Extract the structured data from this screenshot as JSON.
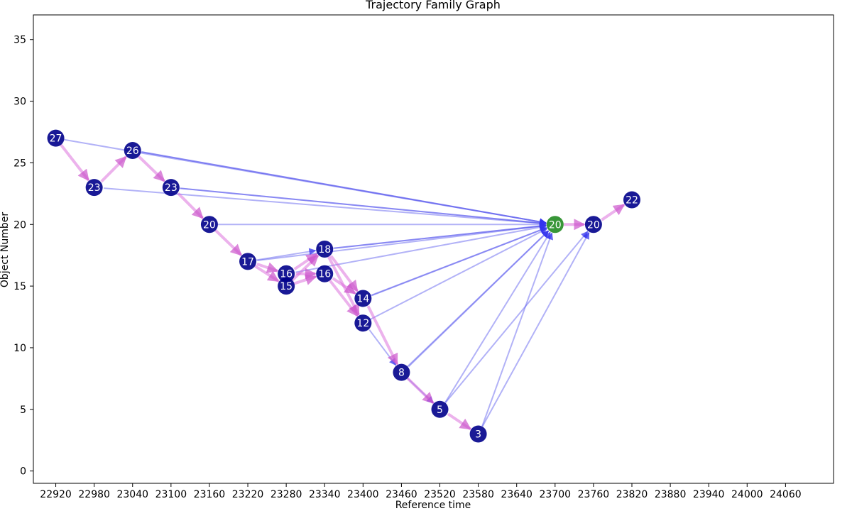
{
  "chart_data": {
    "type": "scatter",
    "title": "Trajectory Family Graph",
    "xlabel": "Reference time",
    "ylabel": "Object Number",
    "xlim": [
      22885,
      24135
    ],
    "ylim": [
      -1,
      37
    ],
    "x_ticks": [
      22920,
      22980,
      23040,
      23100,
      23160,
      23220,
      23280,
      23340,
      23400,
      23460,
      23520,
      23580,
      23640,
      23700,
      23760,
      23820,
      23880,
      23940,
      24000,
      24060
    ],
    "y_ticks": [
      0,
      5,
      10,
      15,
      20,
      25,
      30,
      35
    ],
    "grid": false,
    "colors": {
      "node": "#00008b",
      "highlight_node": "#228b22",
      "sequence_edge": "#d966d9",
      "merge_edge": "#5555ee"
    },
    "nodes": [
      {
        "id": "n1",
        "x": 22920,
        "y": 27,
        "label": "27"
      },
      {
        "id": "n2",
        "x": 22980,
        "y": 23,
        "label": "23"
      },
      {
        "id": "n3",
        "x": 23040,
        "y": 26,
        "label": "26"
      },
      {
        "id": "n4",
        "x": 23100,
        "y": 23,
        "label": "23"
      },
      {
        "id": "n5",
        "x": 23160,
        "y": 20,
        "label": "20"
      },
      {
        "id": "n6",
        "x": 23220,
        "y": 17,
        "label": "17"
      },
      {
        "id": "n7",
        "x": 23280,
        "y": 16,
        "label": "16"
      },
      {
        "id": "n8",
        "x": 23280,
        "y": 15,
        "label": "15"
      },
      {
        "id": "n9",
        "x": 23340,
        "y": 18,
        "label": "18"
      },
      {
        "id": "n10",
        "x": 23340,
        "y": 16,
        "label": "16"
      },
      {
        "id": "n11",
        "x": 23400,
        "y": 14,
        "label": "14"
      },
      {
        "id": "n12",
        "x": 23400,
        "y": 12,
        "label": "12"
      },
      {
        "id": "n13",
        "x": 23460,
        "y": 8,
        "label": "8"
      },
      {
        "id": "n14",
        "x": 23520,
        "y": 5,
        "label": "5"
      },
      {
        "id": "n15",
        "x": 23580,
        "y": 3,
        "label": "3"
      },
      {
        "id": "n16",
        "x": 23700,
        "y": 20,
        "label": "20",
        "highlight": true
      },
      {
        "id": "n17",
        "x": 23760,
        "y": 20,
        "label": "20"
      },
      {
        "id": "n18",
        "x": 23820,
        "y": 22,
        "label": "22"
      }
    ],
    "sequence_edges": [
      [
        "n1",
        "n2"
      ],
      [
        "n2",
        "n3"
      ],
      [
        "n3",
        "n4"
      ],
      [
        "n4",
        "n5"
      ],
      [
        "n5",
        "n6"
      ],
      [
        "n6",
        "n7"
      ],
      [
        "n6",
        "n8"
      ],
      [
        "n7",
        "n9"
      ],
      [
        "n8",
        "n10"
      ],
      [
        "n7",
        "n10"
      ],
      [
        "n8",
        "n9"
      ],
      [
        "n9",
        "n11"
      ],
      [
        "n9",
        "n12"
      ],
      [
        "n10",
        "n11"
      ],
      [
        "n10",
        "n12"
      ],
      [
        "n11",
        "n13"
      ],
      [
        "n13",
        "n14"
      ],
      [
        "n14",
        "n15"
      ],
      [
        "n16",
        "n17"
      ],
      [
        "n17",
        "n18"
      ]
    ],
    "merge_edges": [
      [
        "n1",
        "n16"
      ],
      [
        "n3",
        "n16"
      ],
      [
        "n3",
        "n16"
      ],
      [
        "n2",
        "n16"
      ],
      [
        "n4",
        "n16"
      ],
      [
        "n4",
        "n16"
      ],
      [
        "n5",
        "n16"
      ],
      [
        "n6",
        "n16"
      ],
      [
        "n6",
        "n9"
      ],
      [
        "n9",
        "n16"
      ],
      [
        "n9",
        "n16"
      ],
      [
        "n7",
        "n16"
      ],
      [
        "n11",
        "n16"
      ],
      [
        "n11",
        "n16"
      ],
      [
        "n12",
        "n16"
      ],
      [
        "n12",
        "n13"
      ],
      [
        "n13",
        "n16"
      ],
      [
        "n13",
        "n16"
      ],
      [
        "n13",
        "n14"
      ],
      [
        "n14",
        "n16"
      ],
      [
        "n14",
        "n17"
      ],
      [
        "n15",
        "n16"
      ],
      [
        "n15",
        "n17"
      ]
    ]
  }
}
